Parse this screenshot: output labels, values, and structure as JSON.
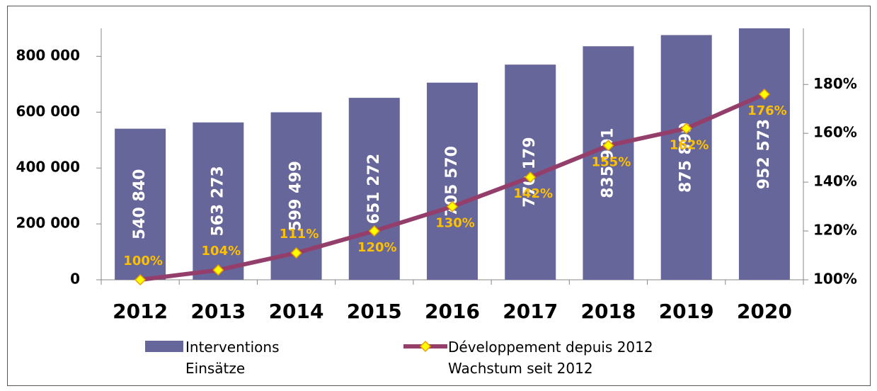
{
  "chart_data": {
    "type": "bar-line",
    "categories": [
      "2012",
      "2013",
      "2014",
      "2015",
      "2016",
      "2017",
      "2018",
      "2019",
      "2020"
    ],
    "series": [
      {
        "name": "Interventions\nEinsätze",
        "color": "#66669a",
        "values": [
          540840,
          563273,
          599499,
          651272,
          705570,
          770179,
          835901,
          875899,
          952573
        ],
        "value_labels": [
          "540 840",
          "563 273",
          "599 499",
          "651 272",
          "705 570",
          "770 179",
          "835 901",
          "875 899",
          "952 573"
        ]
      },
      {
        "name": "Développement depuis 2012\nWachstum seit 2012",
        "color": "#943f6b",
        "axis": "y2",
        "values": [
          100,
          104,
          111,
          120,
          130,
          142,
          155,
          162,
          176
        ],
        "value_labels": [
          "100%",
          "104%",
          "111%",
          "120%",
          "130%",
          "142%",
          "155%",
          "162%",
          "176%"
        ]
      }
    ],
    "ylim": [
      0,
      900000
    ],
    "yticks": [
      0,
      {
        "value": 200000,
        "label": "200 000"
      },
      {
        "value": 400000,
        "label": "400 000"
      },
      {
        "value": 600000,
        "label": "600 000"
      },
      {
        "value": 800000,
        "label": "800 000"
      }
    ],
    "y2lim": [
      100,
      203
    ],
    "y2ticks": [
      {
        "value": 100,
        "label": "100%"
      },
      {
        "value": 120,
        "label": "120%"
      },
      {
        "value": 140,
        "label": "140%"
      },
      {
        "value": 160,
        "label": "160%"
      },
      {
        "value": 180,
        "label": "180%"
      }
    ],
    "legend": "bottom"
  }
}
